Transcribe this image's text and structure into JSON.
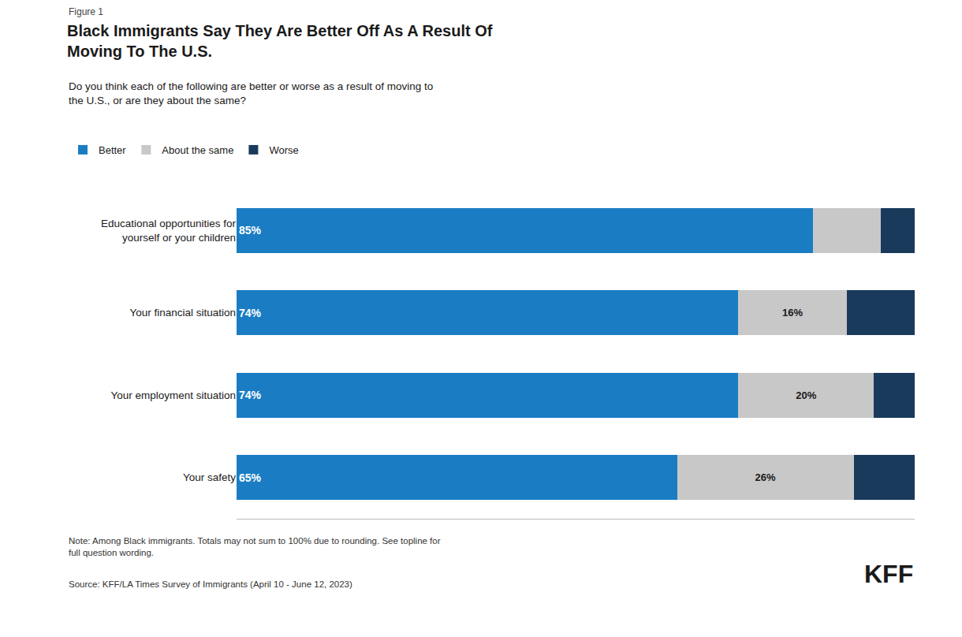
{
  "chart_data": {
    "type": "bar",
    "orientation": "horizontal",
    "stacked": true,
    "title": "Black Immigrants Say They Are Better Off As A Result Of\nMoving To The U.S.",
    "subtitle": "Do you think each of the following are better or worse as a result of moving to\nthe U.S., or are they about the same?",
    "annotations": [
      "Figure 1",
      "Note: Among Black immigrants. Totals may not sum to 100% due to rounding. See topline for\nfull question wording.",
      "Source: KFF/LA Times Survey of Immigrants (April 10 - June 12, 2023)",
      "KFF"
    ],
    "categories": [
      "Educational opportunities for\nyourself or your children",
      "Your financial situation",
      "Your employment situation",
      "Your safety"
    ],
    "series": [
      {
        "name": "Better",
        "color": "#1a7dc4",
        "values": [
          85,
          74,
          74,
          65
        ],
        "value_labels": [
          "85%",
          "74%",
          "74%",
          "65%"
        ],
        "data_labels": true
      },
      {
        "name": "About the same",
        "color": "#c8c8c8",
        "values": [
          10,
          16,
          20,
          26
        ],
        "value_labels": [
          null,
          "16%",
          "20%",
          "26%"
        ],
        "data_labels": true
      },
      {
        "name": "Worse",
        "color": "#1a3a5c",
        "values": [
          5,
          10,
          6,
          9
        ],
        "data_labels": false
      }
    ],
    "xlim": [
      0,
      100
    ],
    "grid": false,
    "legend": "top left",
    "tick_labels": "y"
  }
}
